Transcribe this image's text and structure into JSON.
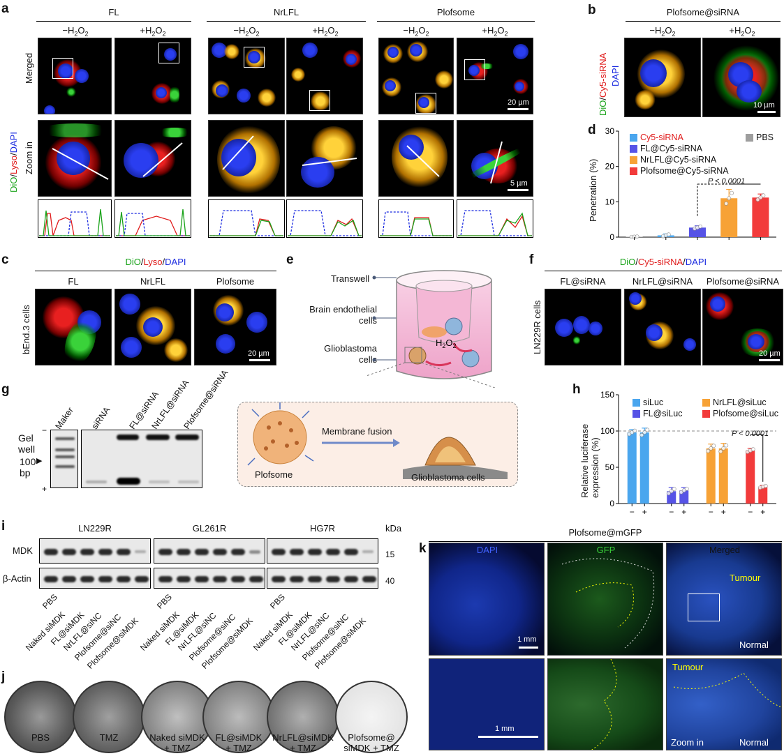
{
  "panels": {
    "a": "a",
    "b": "b",
    "c": "c",
    "d": "d",
    "e": "e",
    "f": "f",
    "g": "g",
    "h": "h",
    "i": "i",
    "j": "j",
    "k": "k"
  },
  "a": {
    "groups": [
      "FL",
      "NrLFL",
      "Plofsome"
    ],
    "conds": [
      "−H2O2",
      "+H2O2"
    ],
    "rows": [
      "Merged",
      "Zoom in"
    ],
    "side_label": [
      "DiO",
      "/",
      "Lyso",
      "/",
      "DAPI"
    ],
    "scale1": "20 µm",
    "scale2": "5 µm"
  },
  "b": {
    "title": "Plofsome@siRNA",
    "conds": [
      "−H2O2",
      "+H2O2"
    ],
    "side_label": [
      "DiO",
      "/",
      "Cy5-siRNA"
    ],
    "side_label2": "DAPI",
    "scale": "10 µm"
  },
  "c": {
    "legend": [
      "DiO",
      "/",
      "Lyso",
      "/",
      "DAPI"
    ],
    "cols": [
      "FL",
      "NrLFL",
      "Plofsome"
    ],
    "row": "bEnd.3 cells",
    "scale": "20 µm"
  },
  "d": {
    "ylabel": "Penetration (%)",
    "pval": "P < 0.0001"
  },
  "e": {
    "labels": [
      "Transwell",
      "Brain endothelial cells",
      "Glioblastoma cells",
      "H2O2"
    ],
    "inset": [
      "Membrane fusion",
      "Plofsome",
      "Glioblastoma cells"
    ]
  },
  "f": {
    "legend": [
      "DiO",
      "/",
      "Cy5-siRNA",
      "/",
      "DAPI"
    ],
    "cols": [
      "FL@siRNA",
      "NrLFL@siRNA",
      "Plofsome@siRNA"
    ],
    "row": "LN229R cells",
    "scale": "20 µm"
  },
  "g": {
    "lanes": [
      "Maker",
      "siRNA",
      "FL@siRNA",
      "NrLFL@siRNA",
      "Plofsome@siRNA"
    ],
    "left": [
      "Gel",
      "well",
      "100",
      "bp"
    ],
    "minus": "−",
    "plus": "+"
  },
  "h": {
    "ylabel": [
      "Relative luciferase",
      "expression (%)"
    ],
    "pval": "P < 0.0001",
    "signs": [
      "−",
      "+",
      "−",
      "+",
      "−",
      "+",
      "−",
      "+"
    ]
  },
  "i": {
    "groups": [
      "LN229R",
      "GL261R",
      "HG7R"
    ],
    "kda": "kDa",
    "rows": [
      "MDK",
      "β-Actin"
    ],
    "mw": [
      "15",
      "40"
    ],
    "lanes": [
      "PBS",
      "Naked siMDK",
      "FL@siMDK",
      "NrLFL@siNC",
      "Plofsome@siNC",
      "Plofsome@siMDK"
    ]
  },
  "j": {
    "labels": [
      [
        "PBS",
        ""
      ],
      [
        "TMZ",
        ""
      ],
      [
        "Naked siMDK",
        "+ TMZ"
      ],
      [
        "FL@siMDK",
        "+ TMZ"
      ],
      [
        "NrLFL@siMDK",
        "+ TMZ"
      ],
      [
        "Plofsome@",
        "siMDK + TMZ"
      ]
    ]
  },
  "k": {
    "title": "Plofsome@mGFP",
    "cols": [
      "DAPI",
      "GFP",
      "Merged"
    ],
    "tumour": "Tumour",
    "normal": "Normal",
    "zoom": "Zoom in",
    "scale": "1 mm"
  },
  "chart_data": [
    {
      "type": "bar",
      "title": "",
      "ylabel": "Penetration (%)",
      "ylim": [
        0,
        30
      ],
      "yticks": [
        0,
        10,
        20,
        30
      ],
      "categories": [
        "PBS",
        "Cy5-siRNA",
        "FL@Cy5-siRNA",
        "NrLFL@Cy5-siRNA",
        "Plofsome@Cy5-siRNA"
      ],
      "values": [
        0.1,
        0.5,
        2.7,
        11.0,
        11.2
      ],
      "errors": [
        0.1,
        0.4,
        0.5,
        2.5,
        1.0
      ],
      "colors": [
        "#9e9e9e",
        "#4aa6ee",
        "#5653e6",
        "#f7a236",
        "#f23b3b"
      ],
      "legend": [
        "Cy5-siRNA",
        "FL@Cy5-siRNA",
        "NrLFL@Cy5-siRNA",
        "Plofsome@Cy5-siRNA",
        "PBS"
      ]
    },
    {
      "type": "bar",
      "title": "",
      "ylabel": "Relative luciferase expression (%)",
      "ylim": [
        0,
        150
      ],
      "yticks": [
        0,
        50,
        100,
        150
      ],
      "categories": [
        "siLuc −",
        "siLuc +",
        "FL@siLuc −",
        "FL@siLuc +",
        "NrLFL@siLuc −",
        "NrLFL@siLuc +",
        "Plofsome@siLuc −",
        "Plofsome@siLuc +"
      ],
      "values": [
        98,
        98,
        17,
        18,
        76,
        76,
        73,
        23
      ],
      "errors": [
        4,
        6,
        5,
        4,
        6,
        7,
        3,
        2
      ],
      "colors": [
        "#4aa6ee",
        "#4aa6ee",
        "#5653e6",
        "#5653e6",
        "#f7a236",
        "#f7a236",
        "#f23b3b",
        "#f23b3b"
      ],
      "legend": [
        "siLuc",
        "FL@siLuc",
        "NrLFL@siLuc",
        "Plofsome@siLuc"
      ],
      "reference_line": 100
    }
  ]
}
